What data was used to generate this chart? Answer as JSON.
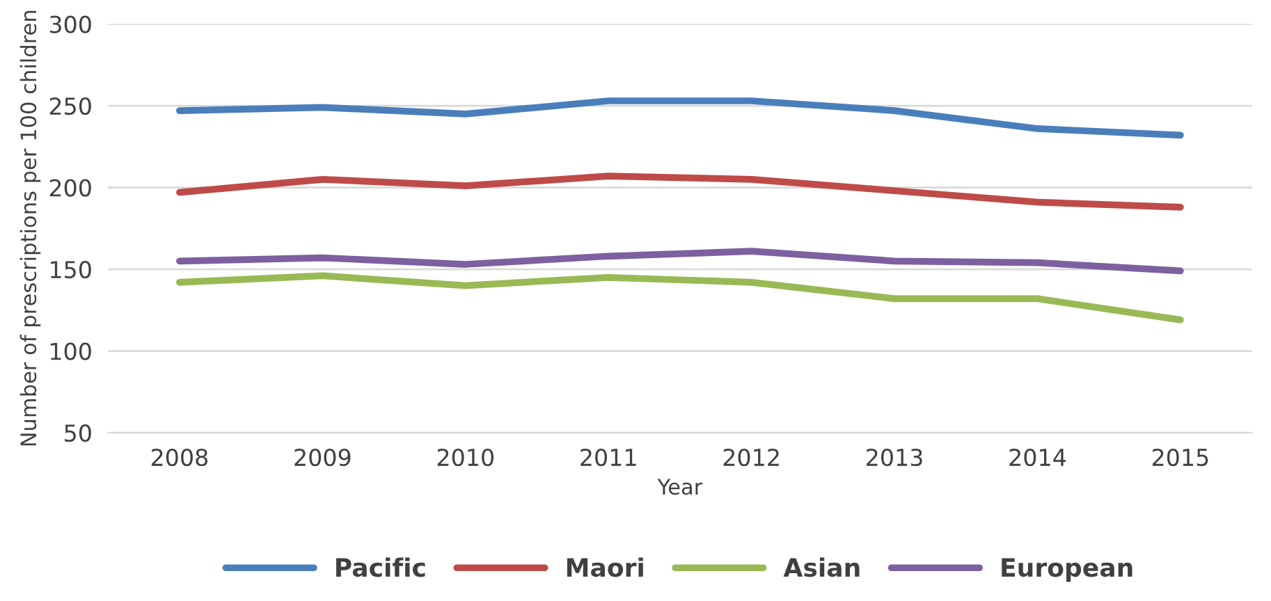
{
  "chart_data": {
    "type": "line",
    "xlabel": "Year",
    "ylabel": "Number of prescriptions per 100 children",
    "categories": [
      "2008",
      "2009",
      "2010",
      "2011",
      "2012",
      "2013",
      "2014",
      "2015"
    ],
    "series": [
      {
        "name": "Pacific",
        "color": "#4a7ebb",
        "values": [
          247,
          249,
          245,
          253,
          253,
          247,
          236,
          232
        ]
      },
      {
        "name": "Maori",
        "color": "#be4b48",
        "values": [
          197,
          205,
          201,
          207,
          205,
          198,
          191,
          188
        ]
      },
      {
        "name": "Asian",
        "color": "#98b954",
        "values": [
          142,
          146,
          140,
          145,
          142,
          132,
          132,
          119
        ]
      },
      {
        "name": "European",
        "color": "#7d60a0",
        "values": [
          155,
          157,
          153,
          158,
          161,
          155,
          154,
          149
        ]
      }
    ],
    "ylim": [
      50,
      300
    ],
    "yticks": [
      50,
      100,
      150,
      200,
      250,
      300
    ],
    "grid": "y",
    "legend": "bottom",
    "marker": "none",
    "line_style": "solid"
  }
}
